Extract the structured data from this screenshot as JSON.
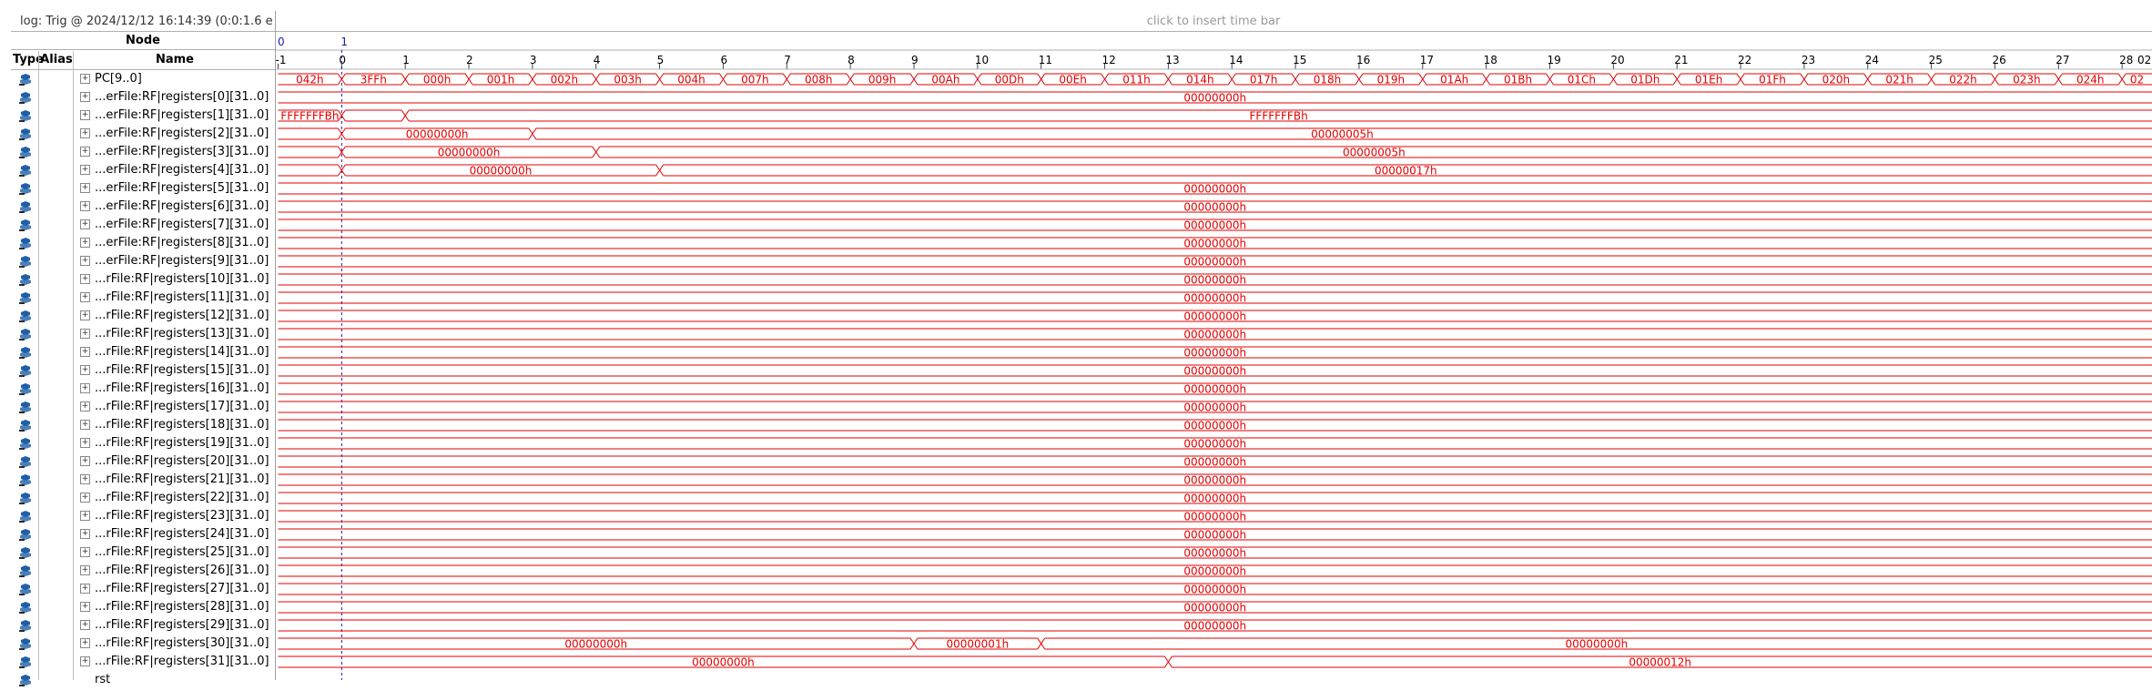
{
  "log_text": "log: Trig @ 2024/12/12 16:14:39 (0:0:1.6 elaps",
  "insert_bar_text": "click to insert time bar",
  "node_header": "Node",
  "columns": {
    "type": "Type",
    "alias": "Alias",
    "name": "Name"
  },
  "top_ruler": {
    "labels": [
      "0",
      "1"
    ]
  },
  "ruler_ticks": [
    "-1",
    "0",
    "1",
    "2",
    "3",
    "4",
    "5",
    "6",
    "7",
    "8",
    "9",
    "10",
    "11",
    "12",
    "13",
    "14",
    "15",
    "16",
    "17",
    "18",
    "19",
    "20",
    "21",
    "22",
    "23",
    "24",
    "25",
    "26",
    "27",
    "28"
  ],
  "ruler_tail": "02",
  "signals": [
    {
      "name": "PC[9..0]",
      "values": [
        "042h",
        "3FFh",
        "000h",
        "001h",
        "002h",
        "003h",
        "004h",
        "007h",
        "008h",
        "009h",
        "00Ah",
        "00Dh",
        "00Eh",
        "011h",
        "014h",
        "017h",
        "018h",
        "019h",
        "01Ah",
        "01Bh",
        "01Ch",
        "01Dh",
        "01Eh",
        "01Fh",
        "020h",
        "021h",
        "022h",
        "023h",
        "024h",
        "02"
      ],
      "bounds": [
        -1,
        0,
        1,
        2,
        3,
        4,
        5,
        6,
        7,
        8,
        9,
        10,
        11,
        12,
        13,
        14,
        15,
        16,
        17,
        18,
        19,
        20,
        21,
        22,
        23,
        24,
        25,
        26,
        27,
        28
      ]
    },
    {
      "name": "...erFile:RF|registers[0][31..0]",
      "values": [
        "00000000h"
      ],
      "bounds": [
        -1
      ]
    },
    {
      "name": "...erFile:RF|registers[1][31..0]",
      "values": [
        "FFFFFFFBh",
        "",
        "FFFFFFFBh"
      ],
      "bounds": [
        -1,
        0,
        1
      ]
    },
    {
      "name": "...erFile:RF|registers[2][31..0]",
      "values": [
        "",
        "00000000h",
        "00000005h"
      ],
      "bounds": [
        -1,
        0,
        3
      ]
    },
    {
      "name": "...erFile:RF|registers[3][31..0]",
      "values": [
        "",
        "00000000h",
        "00000005h"
      ],
      "bounds": [
        -1,
        0,
        4
      ]
    },
    {
      "name": "...erFile:RF|registers[4][31..0]",
      "values": [
        "",
        "00000000h",
        "00000017h"
      ],
      "bounds": [
        -1,
        0,
        5
      ]
    },
    {
      "name": "...erFile:RF|registers[5][31..0]",
      "values": [
        "00000000h"
      ],
      "bounds": [
        -1
      ]
    },
    {
      "name": "...erFile:RF|registers[6][31..0]",
      "values": [
        "00000000h"
      ],
      "bounds": [
        -1
      ]
    },
    {
      "name": "...erFile:RF|registers[7][31..0]",
      "values": [
        "00000000h"
      ],
      "bounds": [
        -1
      ]
    },
    {
      "name": "...erFile:RF|registers[8][31..0]",
      "values": [
        "00000000h"
      ],
      "bounds": [
        -1
      ]
    },
    {
      "name": "...erFile:RF|registers[9][31..0]",
      "values": [
        "00000000h"
      ],
      "bounds": [
        -1
      ]
    },
    {
      "name": "...rFile:RF|registers[10][31..0]",
      "values": [
        "00000000h"
      ],
      "bounds": [
        -1
      ]
    },
    {
      "name": "...rFile:RF|registers[11][31..0]",
      "values": [
        "00000000h"
      ],
      "bounds": [
        -1
      ]
    },
    {
      "name": "...rFile:RF|registers[12][31..0]",
      "values": [
        "00000000h"
      ],
      "bounds": [
        -1
      ]
    },
    {
      "name": "...rFile:RF|registers[13][31..0]",
      "values": [
        "00000000h"
      ],
      "bounds": [
        -1
      ]
    },
    {
      "name": "...rFile:RF|registers[14][31..0]",
      "values": [
        "00000000h"
      ],
      "bounds": [
        -1
      ]
    },
    {
      "name": "...rFile:RF|registers[15][31..0]",
      "values": [
        "00000000h"
      ],
      "bounds": [
        -1
      ]
    },
    {
      "name": "...rFile:RF|registers[16][31..0]",
      "values": [
        "00000000h"
      ],
      "bounds": [
        -1
      ]
    },
    {
      "name": "...rFile:RF|registers[17][31..0]",
      "values": [
        "00000000h"
      ],
      "bounds": [
        -1
      ]
    },
    {
      "name": "...rFile:RF|registers[18][31..0]",
      "values": [
        "00000000h"
      ],
      "bounds": [
        -1
      ]
    },
    {
      "name": "...rFile:RF|registers[19][31..0]",
      "values": [
        "00000000h"
      ],
      "bounds": [
        -1
      ]
    },
    {
      "name": "...rFile:RF|registers[20][31..0]",
      "values": [
        "00000000h"
      ],
      "bounds": [
        -1
      ]
    },
    {
      "name": "...rFile:RF|registers[21][31..0]",
      "values": [
        "00000000h"
      ],
      "bounds": [
        -1
      ]
    },
    {
      "name": "...rFile:RF|registers[22][31..0]",
      "values": [
        "00000000h"
      ],
      "bounds": [
        -1
      ]
    },
    {
      "name": "...rFile:RF|registers[23][31..0]",
      "values": [
        "00000000h"
      ],
      "bounds": [
        -1
      ]
    },
    {
      "name": "...rFile:RF|registers[24][31..0]",
      "values": [
        "00000000h"
      ],
      "bounds": [
        -1
      ]
    },
    {
      "name": "...rFile:RF|registers[25][31..0]",
      "values": [
        "00000000h"
      ],
      "bounds": [
        -1
      ]
    },
    {
      "name": "...rFile:RF|registers[26][31..0]",
      "values": [
        "00000000h"
      ],
      "bounds": [
        -1
      ]
    },
    {
      "name": "...rFile:RF|registers[27][31..0]",
      "values": [
        "00000000h"
      ],
      "bounds": [
        -1
      ]
    },
    {
      "name": "...rFile:RF|registers[28][31..0]",
      "values": [
        "00000000h"
      ],
      "bounds": [
        -1
      ]
    },
    {
      "name": "...rFile:RF|registers[29][31..0]",
      "values": [
        "00000000h"
      ],
      "bounds": [
        -1
      ]
    },
    {
      "name": "...rFile:RF|registers[30][31..0]",
      "values": [
        "00000000h",
        "00000001h",
        "00000000h"
      ],
      "bounds": [
        -1,
        9,
        11
      ]
    },
    {
      "name": "...rFile:RF|registers[31][31..0]",
      "values": [
        "00000000h",
        "00000012h"
      ],
      "bounds": [
        -1,
        13
      ]
    },
    {
      "name": "rst",
      "values": [],
      "bounds": []
    }
  ],
  "colors": {
    "wave": "#e00000",
    "cursor": "#1a1aa0",
    "grid": "#b0b0b0",
    "icon_blue": "#1f5fa8"
  }
}
